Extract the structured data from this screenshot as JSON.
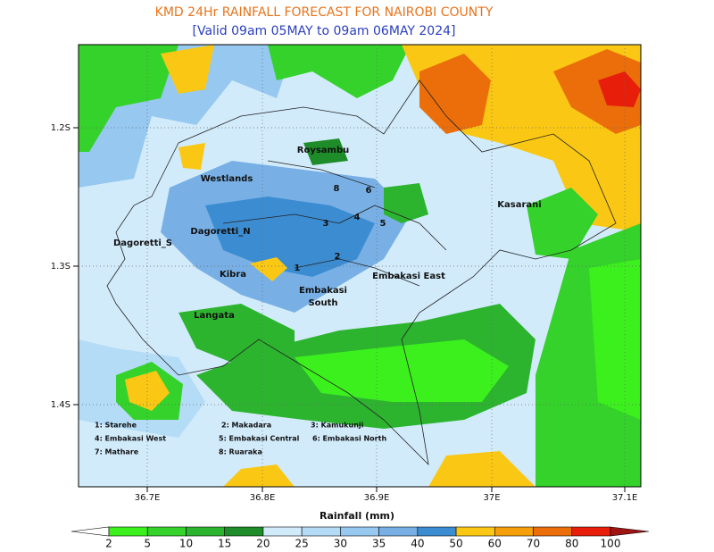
{
  "title": "KMD 24Hr RAINFALL FORECAST FOR NAIROBI COUNTY",
  "subtitle": "[Valid 09am 05MAY to 09am 06MAY 2024]",
  "map": {
    "y_ticks": [
      "1.2S",
      "1.3S",
      "1.4S"
    ],
    "x_ticks": [
      "36.7E",
      "36.8E",
      "36.9E",
      "37E",
      "37.1E"
    ],
    "places": [
      "Roysambu",
      "Westlands",
      "Kasarani",
      "Dagoretti_N",
      "Dagoretti_S",
      "Kibra",
      "Embakasi East",
      "Embakasi",
      "South",
      "Langata"
    ],
    "numbers": [
      "1",
      "2",
      "3",
      "4",
      "5",
      "6",
      "8"
    ],
    "key": [
      "1: Starehe",
      "2: Makadara",
      "3: Kamukunji",
      "4: Embakasi West",
      "5: Embakasi Central",
      "6: Embakasi North",
      "7: Mathare",
      "8: Ruaraka"
    ]
  },
  "colorbar": {
    "label": "Rainfall (mm)",
    "ticks": [
      2,
      5,
      10,
      15,
      20,
      25,
      30,
      35,
      40,
      50,
      60,
      70,
      80,
      100
    ],
    "colors": [
      "#ffffff",
      "#3cf01e",
      "#34d22a",
      "#2db42f",
      "#1e8c28",
      "#d2ebfb",
      "#b4dcf7",
      "#96c8f0",
      "#78b0e6",
      "#3c8cd2",
      "#fac814",
      "#f5a00a",
      "#eb6e0a",
      "#e61e0a",
      "#a01414"
    ]
  }
}
